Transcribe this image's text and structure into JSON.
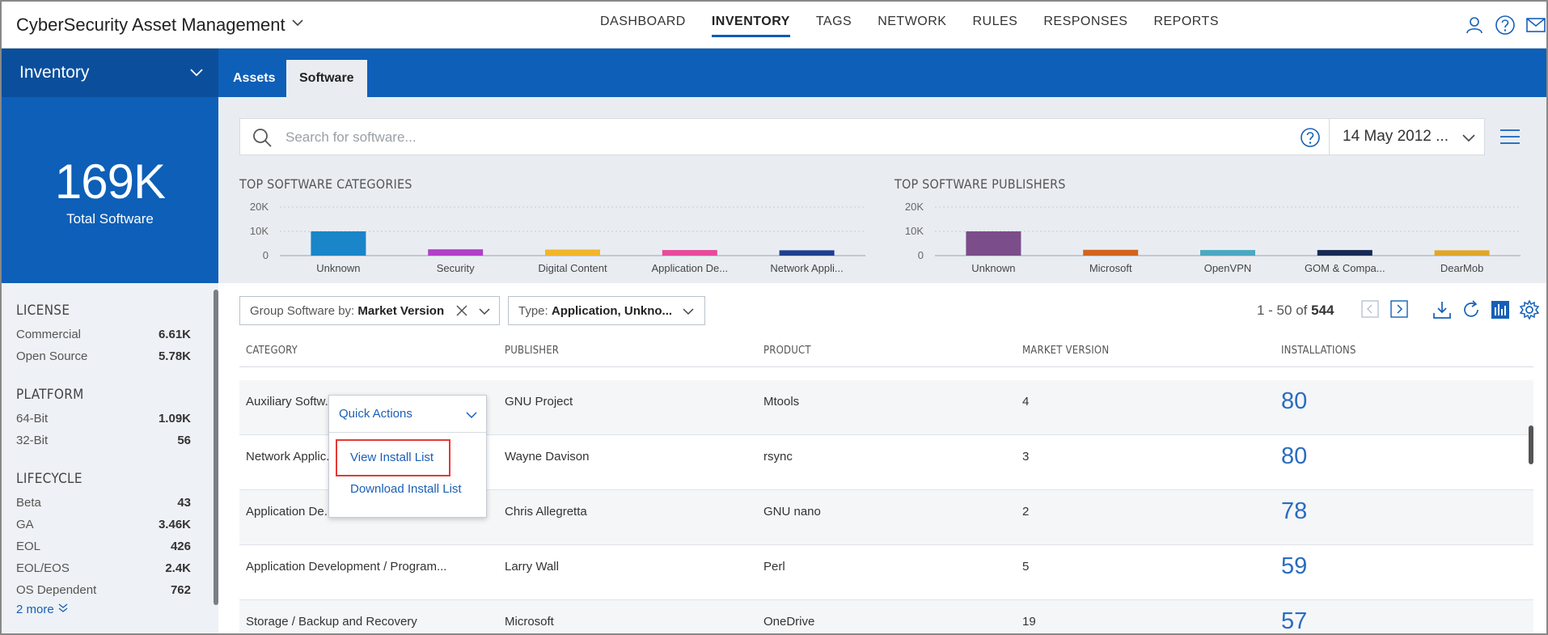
{
  "app": {
    "title": "CyberSecurity Asset Management"
  },
  "nav": [
    "DASHBOARD",
    "INVENTORY",
    "TAGS",
    "NETWORK",
    "RULES",
    "RESPONSES",
    "REPORTS"
  ],
  "nav_active": "INVENTORY",
  "module": {
    "label": "Inventory"
  },
  "tabs": {
    "assets": "Assets",
    "software": "Software"
  },
  "summary": {
    "value": "169K",
    "label": "Total Software"
  },
  "filters": {
    "license": {
      "title": "LICENSE",
      "rows": [
        {
          "label": "Commercial",
          "value": "6.61K"
        },
        {
          "label": "Open Source",
          "value": "5.78K"
        }
      ]
    },
    "platform": {
      "title": "PLATFORM",
      "rows": [
        {
          "label": "64-Bit",
          "value": "1.09K"
        },
        {
          "label": "32-Bit",
          "value": "56"
        }
      ]
    },
    "lifecycle": {
      "title": "LIFECYCLE",
      "rows": [
        {
          "label": "Beta",
          "value": "43"
        },
        {
          "label": "GA",
          "value": "3.46K"
        },
        {
          "label": "EOL",
          "value": "426"
        },
        {
          "label": "EOL/EOS",
          "value": "2.4K"
        },
        {
          "label": "OS Dependent",
          "value": "762"
        }
      ]
    },
    "more": "2 more"
  },
  "search": {
    "placeholder": "Search for software..."
  },
  "date": {
    "value": "14 May 2012 ..."
  },
  "chart_data": [
    {
      "type": "bar",
      "title": "TOP SOFTWARE CATEGORIES",
      "categories": [
        "Unknown",
        "Security",
        "Digital Content",
        "Application De...",
        "Network Appli..."
      ],
      "values": [
        10000,
        2600,
        2500,
        2300,
        2200
      ],
      "ylim": [
        0,
        20000
      ],
      "yticks": [
        "0",
        "10K",
        "20K"
      ],
      "colors": [
        "#1a85c8",
        "#b23fc8",
        "#f2b62b",
        "#e84a9c",
        "#1f3e8e"
      ]
    },
    {
      "type": "bar",
      "title": "TOP SOFTWARE PUBLISHERS",
      "categories": [
        "Unknown",
        "Microsoft",
        "OpenVPN",
        "GOM & Compa...",
        "DearMob"
      ],
      "values": [
        10000,
        2400,
        2300,
        2300,
        2200
      ],
      "ylim": [
        0,
        20000
      ],
      "yticks": [
        "0",
        "10K",
        "20K"
      ],
      "colors": [
        "#7b4d8a",
        "#d2651e",
        "#4ba8c0",
        "#172a55",
        "#e0a72a"
      ]
    }
  ],
  "toolbar": {
    "group_prefix": "Group Software by:",
    "group_value": "Market Version",
    "type_prefix": "Type:",
    "type_value": "Application, Unkno...",
    "page_range": "1 - 50 of",
    "page_total": "544"
  },
  "table": {
    "headers": [
      "CATEGORY",
      "PUBLISHER",
      "PRODUCT",
      "MARKET VERSION",
      "INSTALLATIONS"
    ],
    "rows": [
      {
        "category": "Auxiliary Softw...",
        "publisher": "GNU Project",
        "product": "Mtools",
        "version": "4",
        "installs": "80"
      },
      {
        "category": "Network Applic...",
        "publisher": "Wayne Davison",
        "product": "rsync",
        "version": "3",
        "installs": "80"
      },
      {
        "category": "Application De...",
        "publisher": "Chris Allegretta",
        "product": "GNU nano",
        "version": "2",
        "installs": "78"
      },
      {
        "category": "Application Development / Program...",
        "publisher": "Larry Wall",
        "product": "Perl",
        "version": "5",
        "installs": "59"
      },
      {
        "category": "Storage / Backup and Recovery",
        "publisher": "Microsoft",
        "product": "OneDrive",
        "version": "19",
        "installs": "57"
      }
    ]
  },
  "popup": {
    "title": "Quick Actions",
    "view": "View Install List",
    "download": "Download Install List"
  }
}
